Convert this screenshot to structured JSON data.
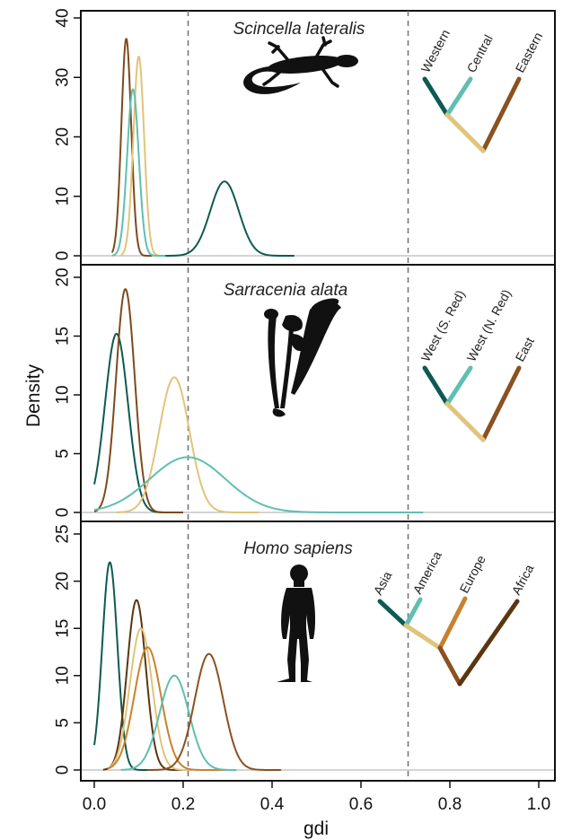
{
  "chart_data": {
    "type": "line",
    "xlabel": "gdi",
    "ylabel": "Density",
    "xlim": [
      0.0,
      1.0
    ],
    "xticks": [
      "0.0",
      "0.2",
      "0.4",
      "0.6",
      "0.8",
      "1.0"
    ],
    "reference_lines": [
      0.2,
      0.7
    ],
    "panels": [
      {
        "id": "scincella",
        "title": "Scincella lateralis",
        "silhouette": "lizard-silhouette",
        "ylim": [
          0,
          40
        ],
        "yticks": [
          "0",
          "10",
          "20",
          "30",
          "40"
        ],
        "series": [
          {
            "color": "#7d4a1d",
            "peak_x": 0.072,
            "peak_y": 36.5,
            "sd": 0.011,
            "xmin": 0.04,
            "xmax": 0.13
          },
          {
            "color": "#e0c47a",
            "peak_x": 0.1,
            "peak_y": 33.5,
            "sd": 0.012,
            "xmin": 0.06,
            "xmax": 0.15
          },
          {
            "color": "#5fbfb0",
            "peak_x": 0.087,
            "peak_y": 28.0,
            "sd": 0.013,
            "xmin": 0.04,
            "xmax": 0.16
          },
          {
            "color": "#0e5a52",
            "peak_x": 0.293,
            "peak_y": 12.5,
            "sd": 0.032,
            "xmin": 0.16,
            "xmax": 0.45
          }
        ],
        "tree": {
          "tips": [
            {
              "label": "Western",
              "color": "#0e5a52"
            },
            {
              "label": "Central",
              "color": "#5fbfb0"
            },
            {
              "label": "Eastern",
              "color": "#8a5221"
            }
          ],
          "inner_color": "#e0c47a"
        }
      },
      {
        "id": "sarracenia",
        "title": "Sarracenia alata",
        "silhouette": "pitcher-plant-silhouette",
        "ylim": [
          0,
          20
        ],
        "yticks": [
          "0",
          "5",
          "10",
          "15",
          "20"
        ],
        "series": [
          {
            "color": "#0e5a52",
            "peak_x": 0.05,
            "peak_y": 15.2,
            "sd": 0.026,
            "xmin": 0.0,
            "xmax": 0.2
          },
          {
            "color": "#7d4a1d",
            "peak_x": 0.07,
            "peak_y": 19.0,
            "sd": 0.021,
            "xmin": 0.0,
            "xmax": 0.2
          },
          {
            "color": "#e0c47a",
            "peak_x": 0.18,
            "peak_y": 11.5,
            "sd": 0.034,
            "xmin": 0.05,
            "xmax": 0.37
          },
          {
            "color": "#5fbfb0",
            "peak_x": 0.21,
            "peak_y": 4.7,
            "sd": 0.085,
            "xmin": 0.0,
            "xmax": 0.74
          }
        ],
        "tree": {
          "tips": [
            {
              "label": "West (S. Red)",
              "color": "#0e5a52"
            },
            {
              "label": "West (N. Red)",
              "color": "#5fbfb0"
            },
            {
              "label": "East",
              "color": "#8a5221"
            }
          ],
          "inner_color": "#e0c47a"
        }
      },
      {
        "id": "homo",
        "title": "Homo sapiens",
        "silhouette": "human-silhouette",
        "ylim": [
          0,
          25
        ],
        "yticks": [
          "0",
          "5",
          "10",
          "15",
          "20",
          "25"
        ],
        "series": [
          {
            "color": "#0e5a52",
            "peak_x": 0.035,
            "peak_y": 22.0,
            "sd": 0.017,
            "xmin": 0.0,
            "xmax": 0.12
          },
          {
            "color": "#5a3510",
            "peak_x": 0.095,
            "peak_y": 18.0,
            "sd": 0.021,
            "xmin": 0.02,
            "xmax": 0.2
          },
          {
            "color": "#e0c47a",
            "peak_x": 0.105,
            "peak_y": 15.0,
            "sd": 0.025,
            "xmin": 0.03,
            "xmax": 0.22
          },
          {
            "color": "#c8822e",
            "peak_x": 0.12,
            "peak_y": 13.0,
            "sd": 0.03,
            "xmin": 0.03,
            "xmax": 0.3
          },
          {
            "color": "#5fbfb0",
            "peak_x": 0.18,
            "peak_y": 10.0,
            "sd": 0.033,
            "xmin": 0.06,
            "xmax": 0.32
          },
          {
            "color": "#8a5221",
            "peak_x": 0.258,
            "peak_y": 12.3,
            "sd": 0.032,
            "xmin": 0.12,
            "xmax": 0.42
          }
        ],
        "tree": {
          "tips": [
            {
              "label": "Asia",
              "color": "#0e5a52"
            },
            {
              "label": "America",
              "color": "#5fbfb0"
            },
            {
              "label": "Europe",
              "color": "#c8822e"
            },
            {
              "label": "Africa",
              "color": "#5a3510"
            }
          ],
          "inner_colors": [
            "#e0c47a",
            "#8a5221"
          ]
        }
      }
    ]
  }
}
